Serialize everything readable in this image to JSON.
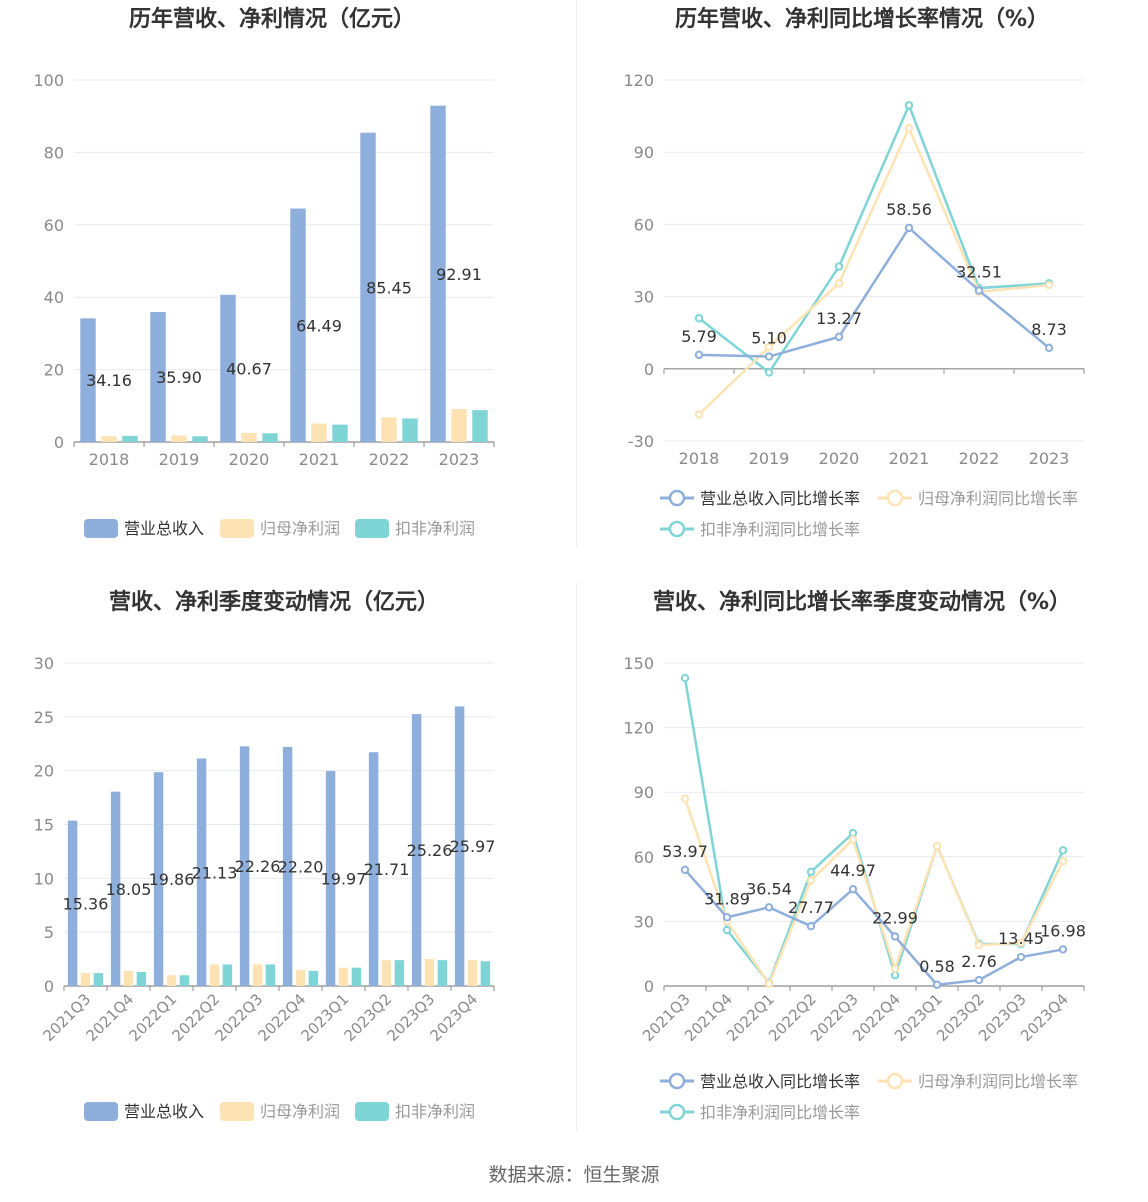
{
  "colors": {
    "revenue": "#8eaedb",
    "parent_profit": "#fde3b3",
    "deducted_profit": "#7fd4d6",
    "rev_growth": "#8eaedb",
    "parent_growth": "#fde3b3",
    "deducted_growth": "#7fd4d6",
    "grid": "#e6e9f0",
    "axis_text": "#8a8a8a",
    "title": "#333333"
  },
  "source_text": "数据来源：恒生聚源",
  "chart_data": [
    {
      "id": "annual_amounts",
      "type": "bar",
      "title": "历年营收、净利情况（亿元）",
      "categories": [
        "2018",
        "2019",
        "2020",
        "2021",
        "2022",
        "2023"
      ],
      "ylim": [
        0,
        100
      ],
      "yticks": [
        0,
        20,
        40,
        60,
        80,
        100
      ],
      "grid": true,
      "legend_position": "bottom",
      "series": [
        {
          "name": "营业总收入",
          "values": [
            34.16,
            35.9,
            40.67,
            64.49,
            85.45,
            92.91
          ],
          "labels": [
            "34.16",
            "35.90",
            "40.67",
            "64.49",
            "85.45",
            "92.91"
          ]
        },
        {
          "name": "归母净利润",
          "values": [
            1.6,
            1.8,
            2.5,
            5.1,
            6.8,
            9.1
          ]
        },
        {
          "name": "扣非净利润",
          "values": [
            1.7,
            1.6,
            2.4,
            4.8,
            6.5,
            8.8
          ]
        }
      ]
    },
    {
      "id": "annual_growth",
      "type": "line",
      "title": "历年营收、净利同比增长率情况（%）",
      "categories": [
        "2018",
        "2019",
        "2020",
        "2021",
        "2022",
        "2023"
      ],
      "ylim": [
        -30,
        120
      ],
      "yticks": [
        -30,
        0,
        30,
        60,
        90,
        120
      ],
      "grid": true,
      "legend_position": "bottom",
      "series": [
        {
          "name": "营业总收入同比增长率",
          "values": [
            5.79,
            5.1,
            13.27,
            58.56,
            32.51,
            8.73
          ],
          "labels": [
            "5.79",
            "5.10",
            "13.27",
            "58.56",
            "32.51",
            "8.73"
          ]
        },
        {
          "name": "归母净利润同比增长率",
          "values": [
            -19.0,
            9.0,
            35.5,
            100.0,
            32.0,
            34.8
          ]
        },
        {
          "name": "扣非净利润同比增长率",
          "values": [
            21.0,
            -1.5,
            42.5,
            109.5,
            33.5,
            35.5
          ]
        }
      ]
    },
    {
      "id": "quarterly_amounts",
      "type": "bar",
      "title": "营收、净利季度变动情况（亿元）",
      "categories": [
        "2021Q3",
        "2021Q4",
        "2022Q1",
        "2022Q2",
        "2022Q3",
        "2022Q4",
        "2023Q1",
        "2023Q2",
        "2023Q3",
        "2023Q4"
      ],
      "ylim": [
        0,
        30
      ],
      "yticks": [
        0,
        5,
        10,
        15,
        20,
        25,
        30
      ],
      "grid": true,
      "legend_position": "bottom",
      "series": [
        {
          "name": "营业总收入",
          "values": [
            15.36,
            18.05,
            19.86,
            21.13,
            22.26,
            22.2,
            19.97,
            21.71,
            25.26,
            25.97
          ],
          "labels": [
            "15.36",
            "18.05",
            "19.86",
            "21.13",
            "22.26",
            "22.20",
            "19.97",
            "21.71",
            "25.26",
            "25.97"
          ]
        },
        {
          "name": "归母净利润",
          "values": [
            1.2,
            1.4,
            1.0,
            2.0,
            2.0,
            1.5,
            1.7,
            2.4,
            2.5,
            2.4
          ]
        },
        {
          "name": "扣非净利润",
          "values": [
            1.2,
            1.3,
            1.0,
            2.0,
            2.0,
            1.4,
            1.7,
            2.4,
            2.4,
            2.3
          ]
        }
      ]
    },
    {
      "id": "quarterly_growth",
      "type": "line",
      "title": "营收、净利同比增长率季度变动情况（%）",
      "categories": [
        "2021Q3",
        "2021Q4",
        "2022Q1",
        "2022Q2",
        "2022Q3",
        "2022Q4",
        "2023Q1",
        "2023Q2",
        "2023Q3",
        "2023Q4"
      ],
      "ylim": [
        0,
        150
      ],
      "yticks": [
        0,
        30,
        60,
        90,
        120,
        150
      ],
      "grid": true,
      "legend_position": "bottom",
      "series": [
        {
          "name": "营业总收入同比增长率",
          "values": [
            53.97,
            31.89,
            36.54,
            27.77,
            44.97,
            22.99,
            0.58,
            2.76,
            13.45,
            16.98
          ],
          "labels": [
            "53.97",
            "31.89",
            "36.54",
            "27.77",
            "44.97",
            "22.99",
            "0.58",
            "2.76",
            "13.45",
            "16.98"
          ]
        },
        {
          "name": "归母净利润同比增长率",
          "values": [
            87.0,
            30.0,
            1.0,
            49.0,
            68.0,
            8.0,
            65.0,
            19.0,
            20.0,
            58.0
          ]
        },
        {
          "name": "扣非净利润同比增长率",
          "values": [
            143.0,
            26.0,
            1.5,
            53.0,
            71.0,
            5.0,
            65.0,
            19.5,
            19.5,
            63.0
          ]
        }
      ]
    }
  ]
}
